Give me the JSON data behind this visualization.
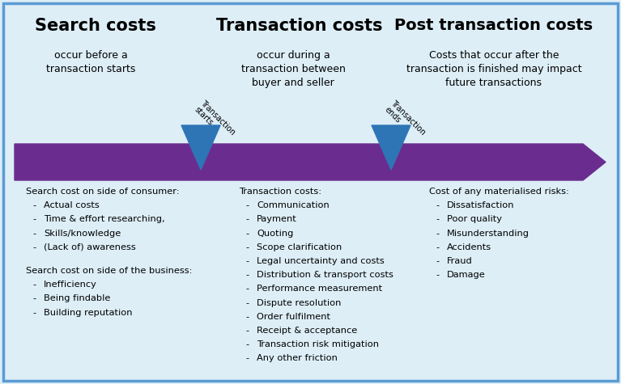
{
  "bg_color": "#ddeef7",
  "border_color": "#5b9bd5",
  "arrow_color": "#6a2d8f",
  "triangle_color": "#2e75b6",
  "title1": "Search costs",
  "title2": "Transaction costs",
  "title3": "Post transaction costs",
  "sub1": "occur before a\ntransaction starts",
  "sub2": "occur during a\ntransaction between\nbuyer and seller",
  "sub3": "Costs that occur after the\ntransaction is finished may impact\nfuture transactions",
  "marker1_label": "Transaction\nstarts",
  "marker2_label": "Transaction\nends",
  "col1_header1": "Search cost on side of consumer:",
  "col1_items1": [
    "Actual costs",
    "Time & effort researching,",
    "Skills/knowledge",
    "(Lack of) awareness"
  ],
  "col1_header2": "Search cost on side of the business:",
  "col1_items2": [
    "Inefficiency",
    "Being findable",
    "Building reputation"
  ],
  "col2_header": "Transaction costs:",
  "col2_items": [
    "Communication",
    "Payment",
    "Quoting",
    "Scope clarification",
    "Legal uncertainty and costs",
    "Distribution & transport costs",
    "Performance measurement",
    "Dispute resolution",
    "Order fulfilment",
    "Receipt & acceptance",
    "Transaction risk mitigation",
    "Any other friction"
  ],
  "col3_header": "Cost of any materialised risks:",
  "col3_items": [
    "Dissatisfaction",
    "Poor quality",
    "Misunderstanding",
    "Accidents",
    "Fraud",
    "Damage"
  ],
  "fig_width": 7.67,
  "fig_height": 4.75,
  "dpi": 100
}
